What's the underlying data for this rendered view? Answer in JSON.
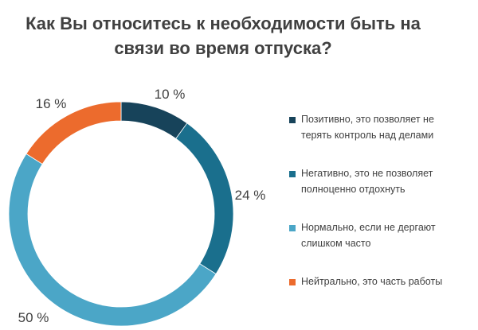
{
  "chart_data": {
    "type": "pie",
    "variant": "donut",
    "title": "Как Вы относитесь к необходимости быть на связи во время отпуска?",
    "title_lines": [
      "Как Вы относитесь к необходимости быть на",
      "связи во время отпуска?"
    ],
    "slices": [
      {
        "name": "Позитивно, это позволяет не терять контроль над делами",
        "lines": [
          "Позитивно, это позволяет не",
          "терять контроль над делами"
        ],
        "value": 10,
        "label": "10 %",
        "color": "#17435a"
      },
      {
        "name": "Негативно, это не позволяет полноценно отдохнуть",
        "lines": [
          "Негативно, это не позволяет",
          "полноценно отдохнуть"
        ],
        "value": 24,
        "label": "24 %",
        "color": "#1a6f8d"
      },
      {
        "name": "Нормально, если не дергают слишком часто",
        "lines": [
          "Нормально, если не дергают",
          "слишком часто"
        ],
        "value": 50,
        "label": "50 %",
        "color": "#4ba6c7"
      },
      {
        "name": "Нейтрально, это часть работы",
        "lines": [
          "Нейтрально, это часть работы"
        ],
        "value": 16,
        "label": "16 %",
        "color": "#ec6b2d"
      }
    ],
    "legend_position": "right"
  }
}
